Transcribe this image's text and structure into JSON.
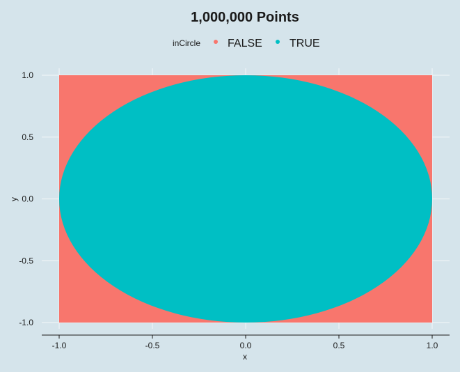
{
  "chart_data": {
    "type": "scatter",
    "title": "1,000,000 Points",
    "xlabel": "x",
    "ylabel": "y",
    "xlim": [
      -1.0,
      1.0
    ],
    "ylim": [
      -1.0,
      1.0
    ],
    "x_ticks": [
      -1.0,
      -0.5,
      0.0,
      0.5,
      1.0
    ],
    "x_tick_labels": [
      "-1.0",
      "-0.5",
      "0.0",
      "0.5",
      "1.0"
    ],
    "y_ticks": [
      -1.0,
      -0.5,
      0.0,
      0.5,
      1.0
    ],
    "y_tick_labels": [
      "-1.0",
      "-0.5",
      "0.0",
      "0.5",
      "1.0"
    ],
    "grid": true,
    "legend_position": "top",
    "legend": {
      "title": "inCircle",
      "entries": [
        {
          "label": "FALSE",
          "color": "#f8766d"
        },
        {
          "label": "TRUE",
          "color": "#00bfc4"
        }
      ]
    },
    "series": [
      {
        "name": "FALSE",
        "color": "#f8766d",
        "region": "square",
        "x_range": [
          -1.0,
          1.0
        ],
        "y_range": [
          -1.0,
          1.0
        ]
      },
      {
        "name": "TRUE",
        "color": "#00bfc4",
        "region": "circle",
        "center": [
          0.0,
          0.0
        ],
        "radius": 1.0
      }
    ]
  },
  "colors": {
    "background": "#d5e4eb",
    "gridline": "#eef3f6",
    "axis": "#1a1a1a"
  }
}
